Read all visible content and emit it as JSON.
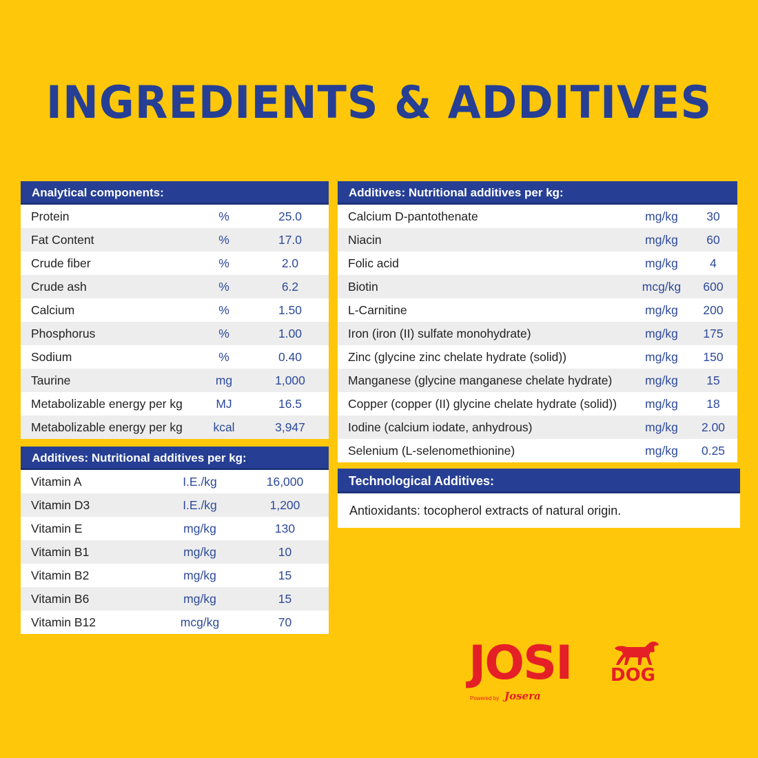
{
  "title": "INGREDIENTS & ADDITIVES",
  "analytical": {
    "heading": "Analytical components:",
    "rows": [
      {
        "name": "Protein",
        "unit": "%",
        "value": "25.0"
      },
      {
        "name": "Fat Content",
        "unit": "%",
        "value": "17.0"
      },
      {
        "name": "Crude fiber",
        "unit": "%",
        "value": "2.0"
      },
      {
        "name": "Crude ash",
        "unit": "%",
        "value": "6.2"
      },
      {
        "name": "Calcium",
        "unit": "%",
        "value": "1.50"
      },
      {
        "name": "Phosphorus",
        "unit": "%",
        "value": "1.00"
      },
      {
        "name": "Sodium",
        "unit": "%",
        "value": "0.40"
      },
      {
        "name": "Taurine",
        "unit": "mg",
        "value": "1,000"
      },
      {
        "name": "Metabolizable energy per kg",
        "unit": "MJ",
        "value": "16.5"
      },
      {
        "name": "Metabolizable energy per kg",
        "unit": "kcal",
        "value": "3,947"
      }
    ]
  },
  "vitamins": {
    "heading": "Additives: Nutritional additives per kg:",
    "rows": [
      {
        "name": "Vitamin A",
        "unit": "I.E./kg",
        "value": "16,000"
      },
      {
        "name": "Vitamin D3",
        "unit": "I.E./kg",
        "value": "1,200"
      },
      {
        "name": "Vitamin E",
        "unit": "mg/kg",
        "value": "130"
      },
      {
        "name": "Vitamin B1",
        "unit": "mg/kg",
        "value": "10"
      },
      {
        "name": "Vitamin B2",
        "unit": "mg/kg",
        "value": "15"
      },
      {
        "name": "Vitamin B6",
        "unit": "mg/kg",
        "value": "15"
      },
      {
        "name": "Vitamin B12",
        "unit": "mcg/kg",
        "value": "70"
      }
    ]
  },
  "minerals": {
    "heading": "Additives: Nutritional additives per kg:",
    "rows": [
      {
        "name": "Calcium D-pantothenate",
        "unit": "mg/kg",
        "value": "30"
      },
      {
        "name": "Niacin",
        "unit": "mg/kg",
        "value": "60"
      },
      {
        "name": "Folic acid",
        "unit": "mg/kg",
        "value": "4"
      },
      {
        "name": "Biotin",
        "unit": "mcg/kg",
        "value": "600"
      },
      {
        "name": "L-Carnitine",
        "unit": "mg/kg",
        "value": "200"
      },
      {
        "name": "Iron (iron (II) sulfate monohydrate)",
        "unit": "mg/kg",
        "value": "175"
      },
      {
        "name": "Zinc (glycine zinc chelate hydrate (solid))",
        "unit": "mg/kg",
        "value": "150"
      },
      {
        "name": "Manganese (glycine manganese chelate hydrate)",
        "unit": "mg/kg",
        "value": "15"
      },
      {
        "name": "Copper (copper (II) glycine chelate hydrate (solid))",
        "unit": "mg/kg",
        "value": "18"
      },
      {
        "name": "Iodine (calcium iodate, anhydrous)",
        "unit": "mg/kg",
        "value": "2.00"
      },
      {
        "name": "Selenium (L-selenomethionine)",
        "unit": "mg/kg",
        "value": "0.25"
      }
    ]
  },
  "technological": {
    "heading": "Technological Additives:",
    "text": "Antioxidants: tocopherol extracts of natural origin."
  },
  "logo": {
    "brand": "JOSI",
    "sub": "DOG",
    "powered": "Powered by",
    "maker": "Josera",
    "icon": "dog-icon"
  },
  "colors": {
    "background": "#FFC709",
    "header_blue": "#263F94",
    "value_blue": "#2E4A9A",
    "brand_red": "#E41F26"
  }
}
